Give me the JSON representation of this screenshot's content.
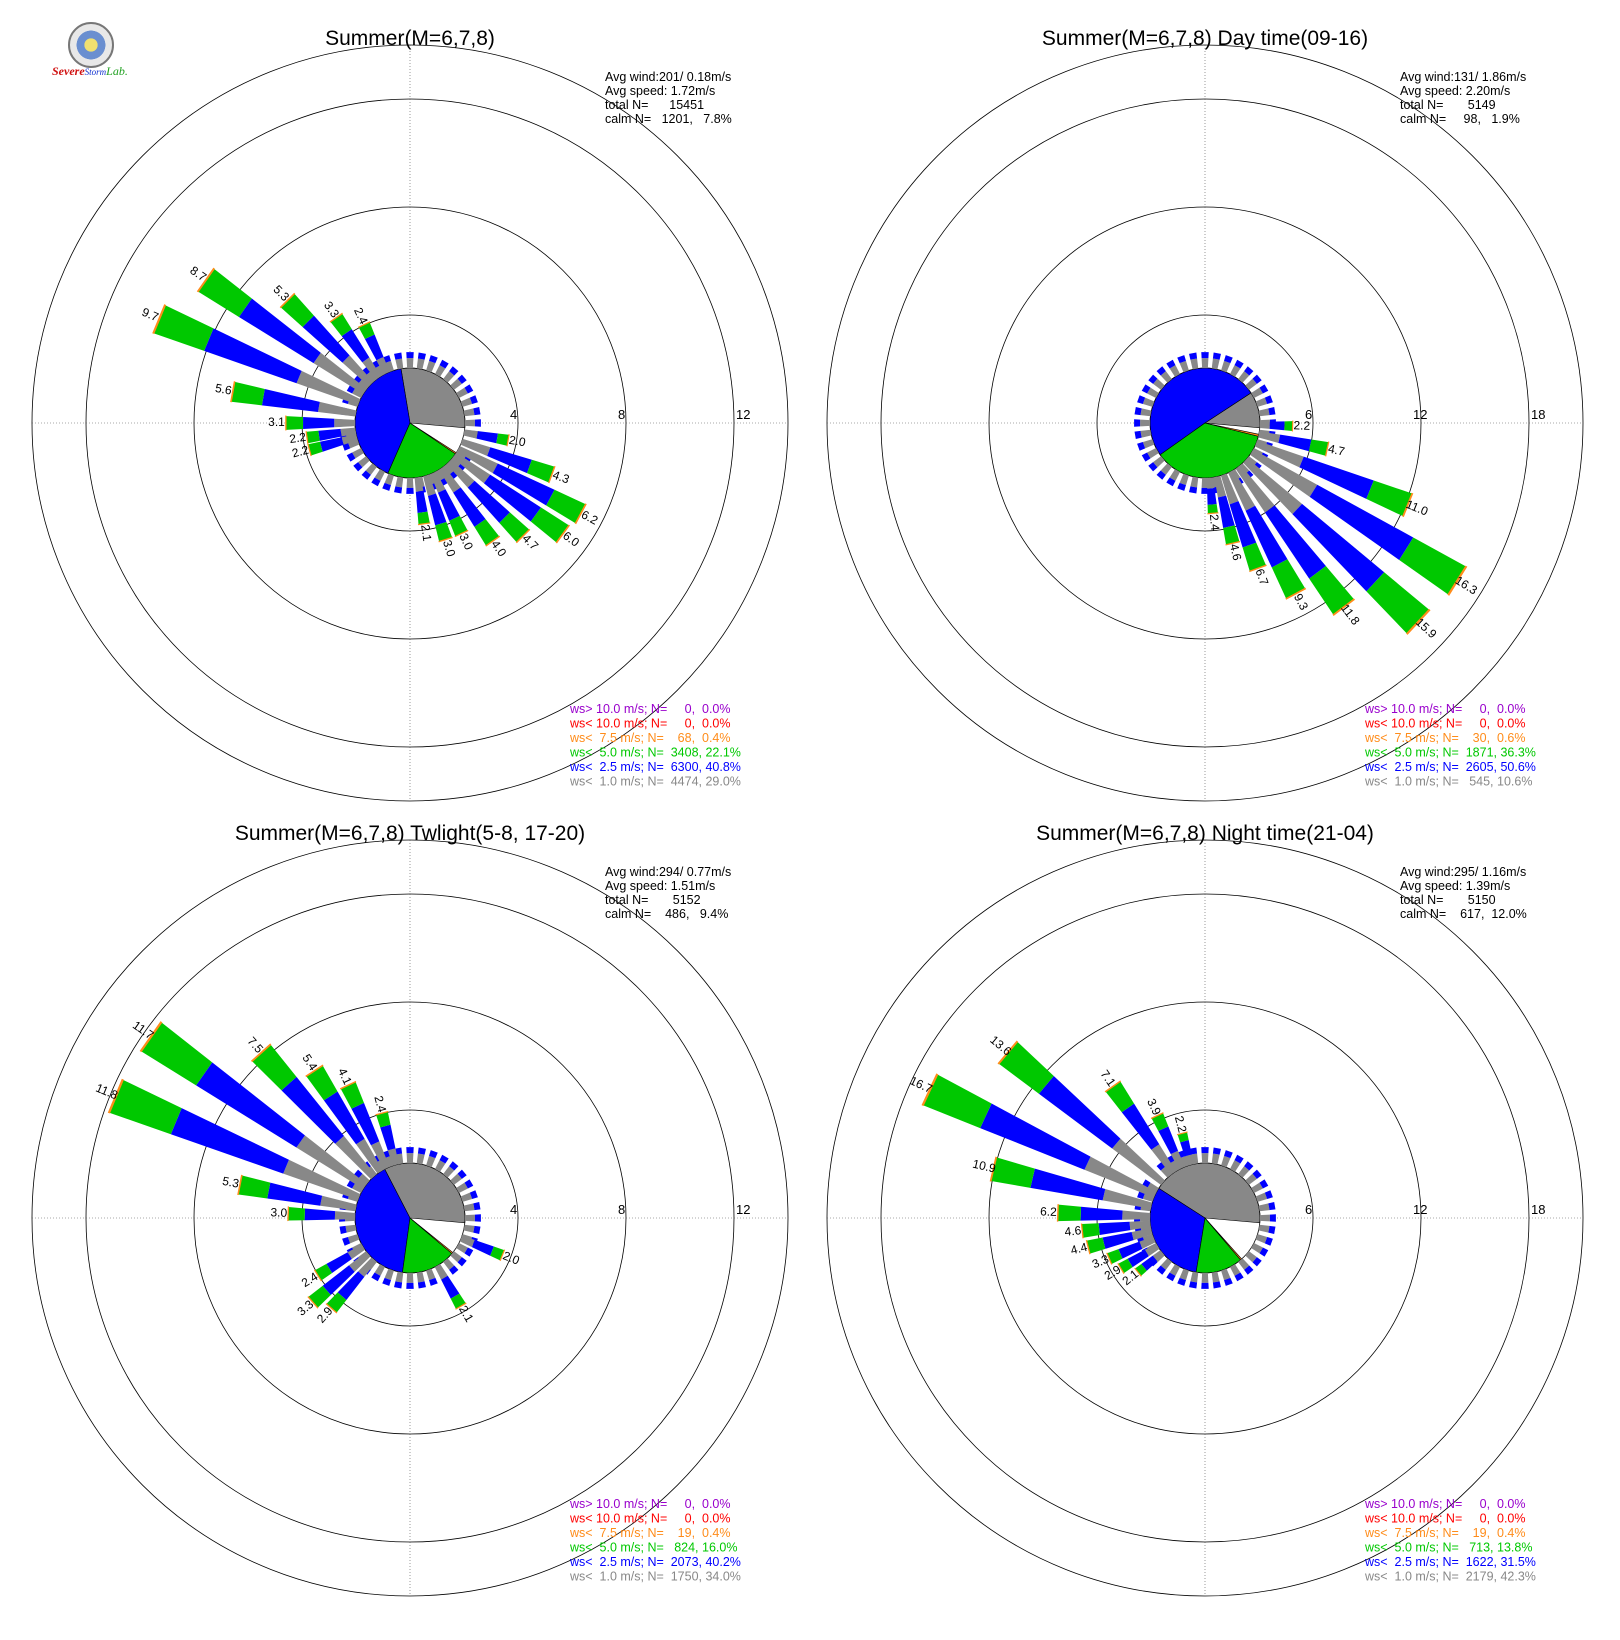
{
  "logo": {
    "line1": "Severe",
    "line2": "Storm",
    "line3": "Lab."
  },
  "colors": {
    "calm": "#888888",
    "c1": "#0000ff",
    "c2": "#00c800",
    "c3": "#ff8c1a",
    "c4": "#ff0000",
    "c5": "#9900cc"
  },
  "chart_data": [
    {
      "type": "wind-rose",
      "title": "Summer(M=6,7,8)",
      "stats": [
        "Avg wind:201/ 0.18m/s",
        "Avg speed: 1.72m/s",
        "total N=      15451",
        "calm N=   1201,   7.8%"
      ],
      "rings": [
        "4",
        "8",
        "12"
      ],
      "ring_values": [
        4,
        8,
        12
      ],
      "legend": [
        {
          "text": "ws> 10.0 m/s; N=     0,  0.0%",
          "color": "#9900cc"
        },
        {
          "text": "ws< 10.0 m/s; N=     0,  0.0%",
          "color": "#ff0000"
        },
        {
          "text": "ws<  7.5 m/s; N=    68,  0.4%",
          "color": "#ff8c1a"
        },
        {
          "text": "ws<  5.0 m/s; N=  3408, 22.1%",
          "color": "#00c800"
        },
        {
          "text": "ws<  2.5 m/s; N=  6300, 40.8%",
          "color": "#0000ff"
        },
        {
          "text": "ws<  1.0 m/s; N=  4474, 29.0%",
          "color": "#888888"
        }
      ],
      "calm_pie": [
        29.0,
        40.8,
        22.1,
        0.4
      ],
      "bars": [
        {
          "dir": 292.5,
          "total": 9.7,
          "label": "9.7"
        },
        {
          "dir": 305,
          "total": 8.7,
          "label": "8.7"
        },
        {
          "dir": 315,
          "total": 5.3,
          "label": "5.3"
        },
        {
          "dir": 325,
          "total": 3.3,
          "label": "3.3"
        },
        {
          "dir": 335,
          "total": 2.4,
          "label": "2.4"
        },
        {
          "dir": 280,
          "total": 5.6,
          "label": "5.6"
        },
        {
          "dir": 270,
          "total": 3.1,
          "label": "3.1"
        },
        {
          "dir": 262,
          "total": 2.2,
          "label": "2.2"
        },
        {
          "dir": 255,
          "total": 2.2,
          "label": "2.2"
        },
        {
          "dir": 100,
          "total": 2.0,
          "label": "2.0"
        },
        {
          "dir": 110,
          "total": 4.3,
          "label": "4.3"
        },
        {
          "dir": 118,
          "total": 6.2,
          "label": "6.2"
        },
        {
          "dir": 126,
          "total": 6.0,
          "label": "6.0"
        },
        {
          "dir": 135,
          "total": 4.7,
          "label": "4.7"
        },
        {
          "dir": 145,
          "total": 4.0,
          "label": "4.0"
        },
        {
          "dir": 155,
          "total": 3.0,
          "label": "3.0"
        },
        {
          "dir": 163,
          "total": 3.0,
          "label": "3.0"
        },
        {
          "dir": 172,
          "total": 2.1,
          "label": "2.1"
        }
      ]
    },
    {
      "type": "wind-rose",
      "title": "Summer(M=6,7,8) Day time(09-16)",
      "stats": [
        "Avg wind:131/ 1.86m/s",
        "Avg speed: 2.20m/s",
        "total N=       5149",
        "calm N=     98,   1.9%"
      ],
      "rings": [
        "6",
        "12",
        "18"
      ],
      "ring_values": [
        6,
        12,
        18
      ],
      "legend": [
        {
          "text": "ws> 10.0 m/s; N=     0,  0.0%",
          "color": "#9900cc"
        },
        {
          "text": "ws< 10.0 m/s; N=     0,  0.0%",
          "color": "#ff0000"
        },
        {
          "text": "ws<  7.5 m/s; N=    30,  0.6%",
          "color": "#ff8c1a"
        },
        {
          "text": "ws<  5.0 m/s; N=  1871, 36.3%",
          "color": "#00c800"
        },
        {
          "text": "ws<  2.5 m/s; N=  2605, 50.6%",
          "color": "#0000ff"
        },
        {
          "text": "ws<  1.0 m/s; N=   545, 10.6%",
          "color": "#888888"
        }
      ],
      "calm_pie": [
        10.6,
        50.6,
        36.3,
        0.6
      ],
      "bars": [
        {
          "dir": 92,
          "total": 2.2,
          "label": "2.2"
        },
        {
          "dir": 102,
          "total": 4.7,
          "label": "4.7"
        },
        {
          "dir": 112,
          "total": 11.0,
          "label": "11.0"
        },
        {
          "dir": 122,
          "total": 16.3,
          "label": "16.3"
        },
        {
          "dir": 133,
          "total": 15.9,
          "label": "15.9"
        },
        {
          "dir": 143,
          "total": 11.8,
          "label": "11.8"
        },
        {
          "dir": 152,
          "total": 9.3,
          "label": "9.3"
        },
        {
          "dir": 160,
          "total": 6.7,
          "label": "6.7"
        },
        {
          "dir": 167,
          "total": 4.6,
          "label": "4.6"
        },
        {
          "dir": 175,
          "total": 2.4,
          "label": "2.4"
        }
      ]
    },
    {
      "type": "wind-rose",
      "title": "Summer(M=6,7,8) Twlight(5-8, 17-20)",
      "stats": [
        "Avg wind:294/ 0.77m/s",
        "Avg speed: 1.51m/s",
        "total N=       5152",
        "calm N=    486,   9.4%"
      ],
      "rings": [
        "4",
        "8",
        "12"
      ],
      "ring_values": [
        4,
        8,
        12
      ],
      "legend": [
        {
          "text": "ws> 10.0 m/s; N=     0,  0.0%",
          "color": "#9900cc"
        },
        {
          "text": "ws< 10.0 m/s; N=     0,  0.0%",
          "color": "#ff0000"
        },
        {
          "text": "ws<  7.5 m/s; N=    19,  0.4%",
          "color": "#ff8c1a"
        },
        {
          "text": "ws<  5.0 m/s; N=   824, 16.0%",
          "color": "#00c800"
        },
        {
          "text": "ws<  2.5 m/s; N=  2073, 40.2%",
          "color": "#0000ff"
        },
        {
          "text": "ws<  1.0 m/s; N=  1750, 34.0%",
          "color": "#888888"
        }
      ],
      "calm_pie": [
        34.0,
        40.2,
        16.0,
        0.4
      ],
      "bars": [
        {
          "dir": 292.5,
          "total": 11.8,
          "label": "11.8"
        },
        {
          "dir": 305,
          "total": 11.7,
          "label": "11.7"
        },
        {
          "dir": 318,
          "total": 7.5,
          "label": "7.5"
        },
        {
          "dir": 327,
          "total": 5.4,
          "label": "5.4"
        },
        {
          "dir": 335,
          "total": 4.1,
          "label": "4.1"
        },
        {
          "dir": 345,
          "total": 2.4,
          "label": "2.4"
        },
        {
          "dir": 281,
          "total": 5.3,
          "label": "5.3"
        },
        {
          "dir": 272,
          "total": 3.0,
          "label": "3.0"
        },
        {
          "dir": 238,
          "total": 2.4,
          "label": "2.4"
        },
        {
          "dir": 229,
          "total": 3.3,
          "label": "3.3"
        },
        {
          "dir": 221,
          "total": 2.9,
          "label": "2.9"
        },
        {
          "dir": 112,
          "total": 2.0,
          "label": "2.0"
        },
        {
          "dir": 150,
          "total": 2.1,
          "label": "2.1"
        }
      ]
    },
    {
      "type": "wind-rose",
      "title": "Summer(M=6,7,8) Night time(21-04)",
      "stats": [
        "Avg wind:295/ 1.16m/s",
        "Avg speed: 1.39m/s",
        "total N=       5150",
        "calm N=    617,  12.0%"
      ],
      "rings": [
        "6",
        "12",
        "18"
      ],
      "ring_values": [
        6,
        12,
        18
      ],
      "legend": [
        {
          "text": "ws> 10.0 m/s; N=     0,  0.0%",
          "color": "#9900cc"
        },
        {
          "text": "ws< 10.0 m/s; N=     0,  0.0%",
          "color": "#ff0000"
        },
        {
          "text": "ws<  7.5 m/s; N=    19,  0.4%",
          "color": "#ff8c1a"
        },
        {
          "text": "ws<  5.0 m/s; N=   713, 13.8%",
          "color": "#00c800"
        },
        {
          "text": "ws<  2.5 m/s; N=  1622, 31.5%",
          "color": "#0000ff"
        },
        {
          "text": "ws<  1.0 m/s; N=  2179, 42.3%",
          "color": "#888888"
        }
      ],
      "calm_pie": [
        42.3,
        31.5,
        13.8,
        0.4
      ],
      "bars": [
        {
          "dir": 295,
          "total": 16.7,
          "label": "16.7"
        },
        {
          "dir": 310,
          "total": 13.6,
          "label": "13.6"
        },
        {
          "dir": 325,
          "total": 7.1,
          "label": "7.1"
        },
        {
          "dir": 335,
          "total": 3.9,
          "label": "3.9"
        },
        {
          "dir": 345,
          "total": 2.2,
          "label": "2.2"
        },
        {
          "dir": 283,
          "total": 10.9,
          "label": "10.9"
        },
        {
          "dir": 272,
          "total": 6.2,
          "label": "6.2"
        },
        {
          "dir": 264,
          "total": 4.6,
          "label": "4.6"
        },
        {
          "dir": 256,
          "total": 4.4,
          "label": "4.4"
        },
        {
          "dir": 247,
          "total": 3.3,
          "label": "3.3"
        },
        {
          "dir": 239,
          "total": 2.9,
          "label": "2.9"
        },
        {
          "dir": 231,
          "total": 2.1,
          "label": "2.1"
        }
      ]
    }
  ]
}
